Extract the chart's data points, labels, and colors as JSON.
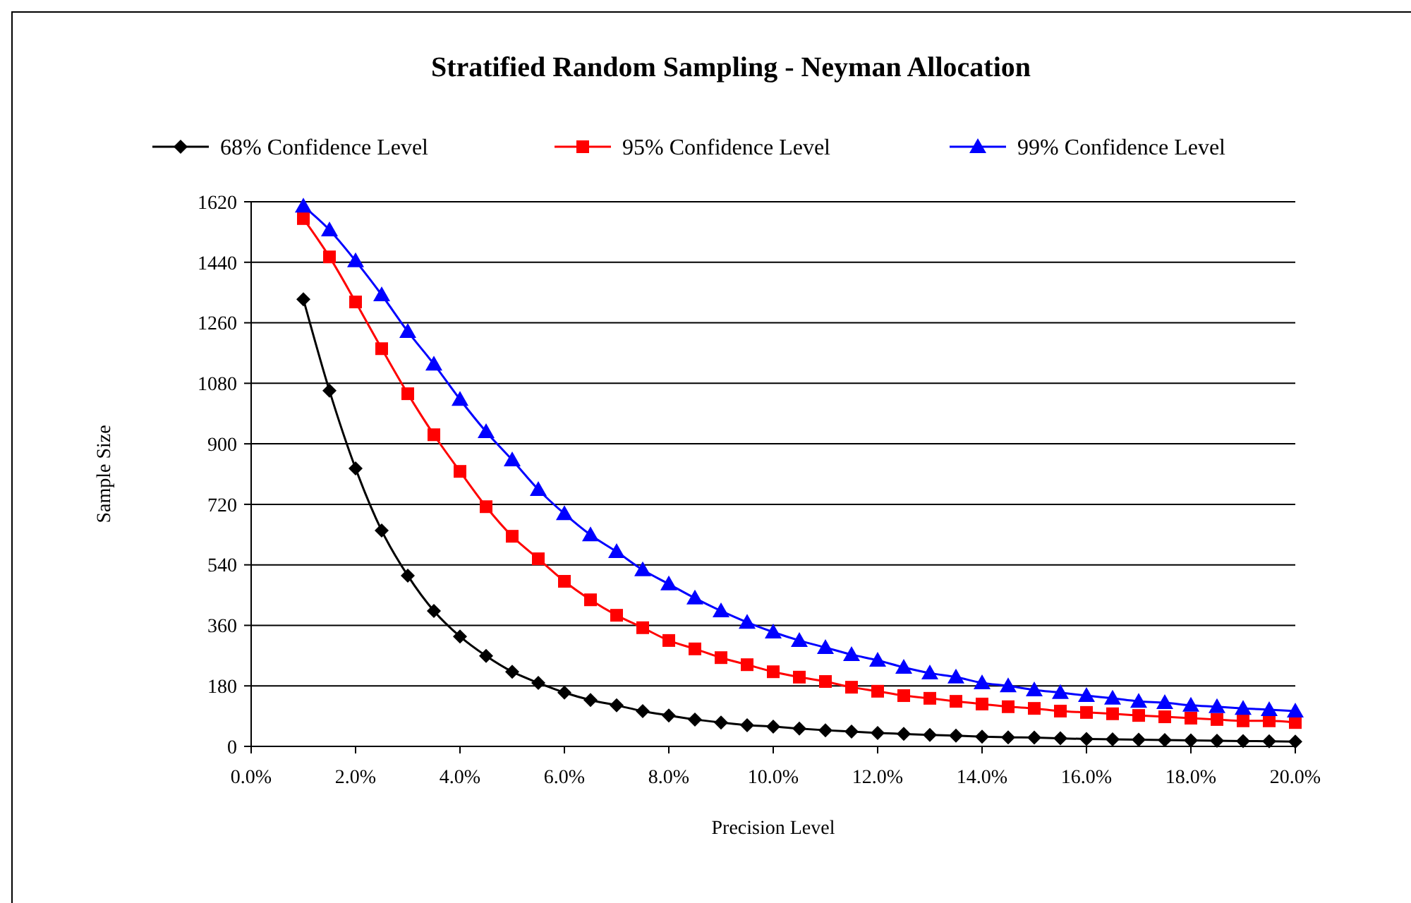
{
  "chart_data": {
    "type": "line",
    "title": "Stratified Random Sampling - Neyman Allocation",
    "xlabel": "Precision Level",
    "ylabel": "Sample Size",
    "x": [
      1,
      1.5,
      2,
      2.5,
      3,
      3.5,
      4,
      4.5,
      5,
      5.5,
      6,
      6.5,
      7,
      7.5,
      8,
      8.5,
      9,
      9.5,
      10,
      10.5,
      11,
      11.5,
      12,
      12.5,
      13,
      13.5,
      14,
      14.5,
      15,
      15.5,
      16,
      16.5,
      17,
      17.5,
      18,
      18.5,
      19,
      19.5,
      20
    ],
    "series": [
      {
        "name": "68% Confidence Level",
        "color": "#000000",
        "marker": "diamond",
        "values": [
          1330,
          1058,
          827,
          642,
          508,
          403,
          327,
          269,
          222,
          189,
          160,
          138,
          122,
          105,
          92,
          80,
          71,
          63,
          59,
          53,
          48,
          44,
          40,
          37,
          34,
          32,
          29,
          27,
          26,
          24,
          22,
          21,
          20,
          19,
          18,
          17,
          16,
          15,
          14
        ]
      },
      {
        "name": "95% Confidence Level",
        "color": "#ff0000",
        "marker": "square",
        "values": [
          1570,
          1456,
          1322,
          1183,
          1049,
          927,
          818,
          713,
          625,
          558,
          491,
          436,
          390,
          353,
          315,
          290,
          264,
          243,
          222,
          206,
          193,
          176,
          164,
          151,
          143,
          134,
          126,
          118,
          113,
          105,
          101,
          97,
          92,
          88,
          84,
          80,
          76,
          76,
          71
        ]
      },
      {
        "name": "99% Confidence Level",
        "color": "#0000ff",
        "marker": "triangle",
        "values": [
          1607,
          1536,
          1444,
          1343,
          1234,
          1137,
          1032,
          936,
          852,
          764,
          692,
          629,
          579,
          525,
          483,
          441,
          403,
          369,
          340,
          315,
          294,
          273,
          256,
          235,
          218,
          206,
          189,
          180,
          168,
          160,
          151,
          143,
          134,
          130,
          122,
          118,
          113,
          109,
          105
        ]
      }
    ],
    "xlim": [
      0,
      20
    ],
    "xticks": [
      {
        "value": 0,
        "label": "0.0%"
      },
      {
        "value": 2,
        "label": "2.0%"
      },
      {
        "value": 4,
        "label": "4.0%"
      },
      {
        "value": 6,
        "label": "6.0%"
      },
      {
        "value": 8,
        "label": "8.0%"
      },
      {
        "value": 10,
        "label": "10.0%"
      },
      {
        "value": 12,
        "label": "12.0%"
      },
      {
        "value": 14,
        "label": "14.0%"
      },
      {
        "value": 16,
        "label": "16.0%"
      },
      {
        "value": 18,
        "label": "18.0%"
      },
      {
        "value": 20,
        "label": "20.0%"
      }
    ],
    "ylim": [
      0,
      1620
    ],
    "yticks": [
      0,
      180,
      360,
      540,
      720,
      900,
      1080,
      1260,
      1440,
      1620
    ],
    "grid": "y",
    "legend": "top"
  }
}
